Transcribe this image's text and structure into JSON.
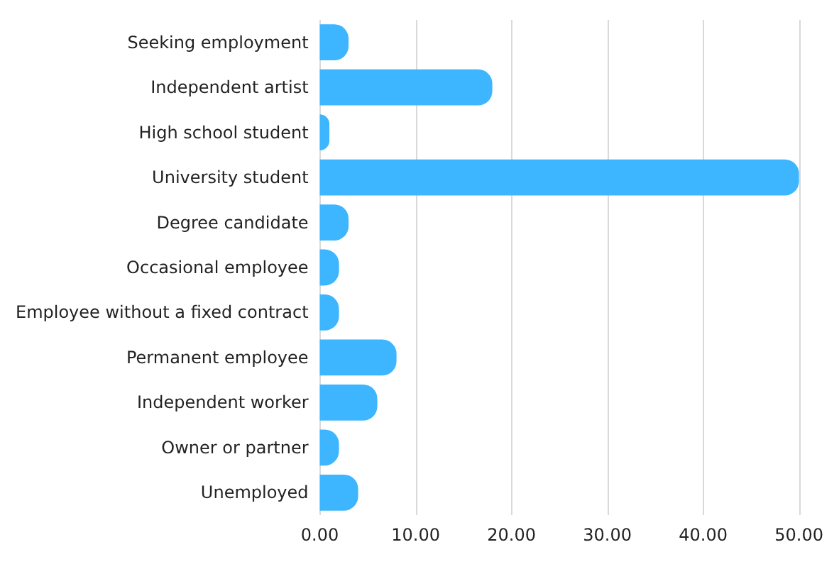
{
  "chart_data": {
    "type": "bar",
    "orientation": "horizontal",
    "categories": [
      "Seeking employment",
      "Independent artist",
      "High school student",
      "University student",
      "Degree candidate",
      "Occasional employee",
      "Employee without a fixed contract",
      "Permanent employee",
      "Independent worker",
      "Owner or partner",
      "Unemployed"
    ],
    "values": [
      3,
      18,
      1,
      50,
      3,
      2,
      2,
      8,
      6,
      2,
      4
    ],
    "color": "#3db5ff",
    "xlim": [
      0,
      50
    ],
    "xticks": [
      {
        "value": 0,
        "label": "0.00"
      },
      {
        "value": 10,
        "label": "10.00"
      },
      {
        "value": 20,
        "label": "20.00"
      },
      {
        "value": 30,
        "label": "30.00"
      },
      {
        "value": 40,
        "label": "40.00"
      },
      {
        "value": 50,
        "label": "50.00"
      }
    ],
    "grid": "x"
  }
}
